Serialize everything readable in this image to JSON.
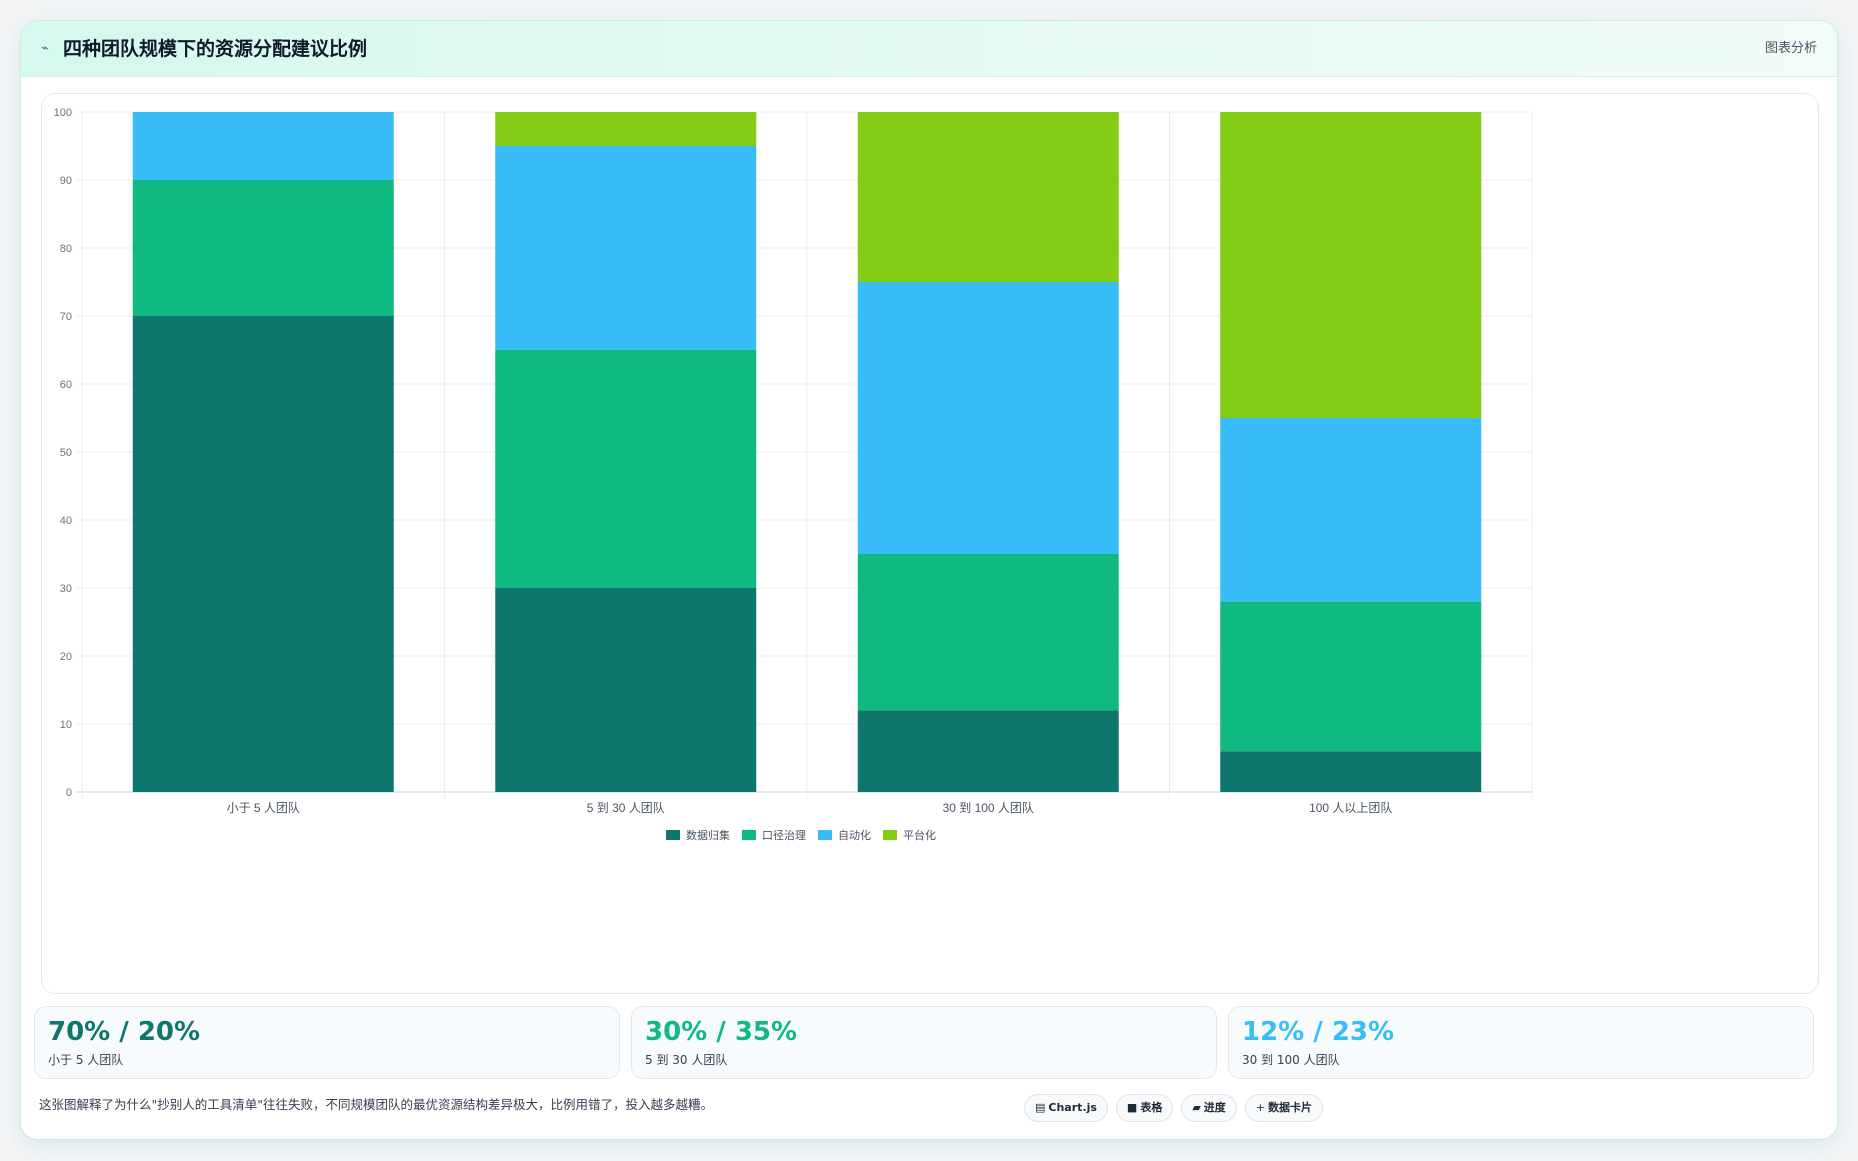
{
  "header": {
    "icon": "trend-line-icon",
    "title": "四种团队规模下的资源分配建议比例",
    "link": "图表分析"
  },
  "chart_data": {
    "type": "bar",
    "stacked": true,
    "categories": [
      "小于 5 人团队",
      "5 到 30 人团队",
      "30 到 100 人团队",
      "100 人以上团队"
    ],
    "series": [
      {
        "name": "数据归集",
        "color": "#0f766e",
        "values": [
          70,
          30,
          12,
          6
        ]
      },
      {
        "name": "口径治理",
        "color": "#10b981",
        "values": [
          20,
          35,
          23,
          22
        ]
      },
      {
        "name": "自动化",
        "color": "#38bdf8",
        "values": [
          10,
          30,
          40,
          27
        ]
      },
      {
        "name": "平台化",
        "color": "#84cc16",
        "values": [
          0,
          5,
          25,
          45
        ]
      }
    ],
    "ylim": [
      0,
      100
    ],
    "yticks": [
      0,
      10,
      20,
      30,
      40,
      50,
      60,
      70,
      80,
      90,
      100
    ],
    "grid": true,
    "legend": "bottom"
  },
  "stats": [
    {
      "value": "70% / 20%",
      "label": "小于 5 人团队",
      "color": "#0f766e"
    },
    {
      "value": "30% / 35%",
      "label": "5 到 30 人团队",
      "color": "#10b981"
    },
    {
      "value": "12% / 23%",
      "label": "30 到 100 人团队",
      "color": "#38bdf8"
    }
  ],
  "footnote": "这张图解释了为什么\"抄别人的工具清单\"往往失败，不同规模团队的最优资源结构差异极大，比例用错了，投入越多越糟。",
  "pills": [
    {
      "icon": "chart-icon",
      "glyph": "▤",
      "label": "Chart.js"
    },
    {
      "icon": "table-icon",
      "glyph": "■",
      "label": "表格"
    },
    {
      "icon": "progress-icon",
      "glyph": "▰",
      "label": "进度"
    },
    {
      "icon": "sparkle-icon",
      "glyph": "+",
      "label": "数据卡片"
    }
  ]
}
